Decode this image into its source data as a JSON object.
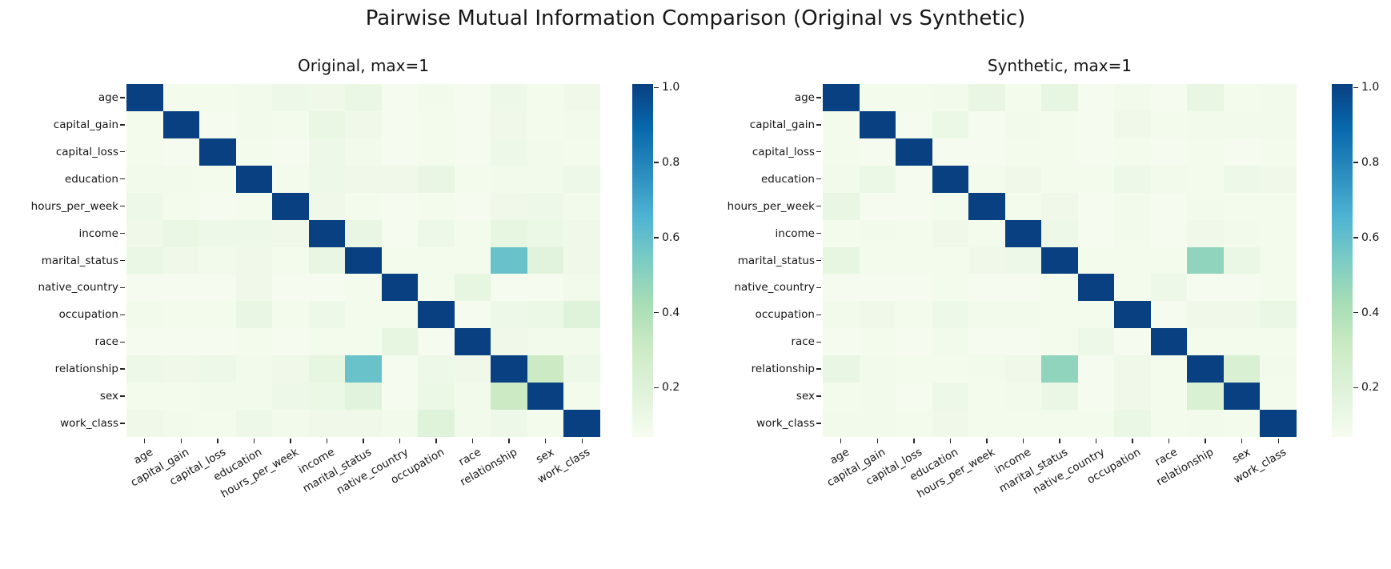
{
  "figure": {
    "title": "Pairwise Mutual Information Comparison (Original vs Synthetic)",
    "background": "#ffffff",
    "text_color": "#161616"
  },
  "chart_data": {
    "type": "heatmap",
    "labels": [
      "age",
      "capital_gain",
      "capital_loss",
      "education",
      "hours_per_week",
      "income",
      "marital_status",
      "native_country",
      "occupation",
      "race",
      "relationship",
      "sex",
      "work_class"
    ],
    "vmin": 0,
    "vmax": 1,
    "grid": false,
    "colormap": {
      "name": "GnBu",
      "stops": [
        [
          0,
          "#f7fcf0"
        ],
        [
          0.125,
          "#e0f3db"
        ],
        [
          0.25,
          "#ccebc5"
        ],
        [
          0.375,
          "#a8ddb5"
        ],
        [
          0.5,
          "#7bccc4"
        ],
        [
          0.625,
          "#4eb3d3"
        ],
        [
          0.75,
          "#2b8cbe"
        ],
        [
          0.875,
          "#0868ac"
        ],
        [
          1,
          "#084081"
        ]
      ]
    },
    "colorbar": {
      "ticks": [
        "1.0",
        "0.8",
        "0.6",
        "0.4",
        "0.2"
      ],
      "tick_values": [
        1.0,
        0.8,
        0.6,
        0.4,
        0.2
      ]
    },
    "panels": [
      {
        "title": "Original, max=1",
        "matrix": [
          [
            1.0,
            0.02,
            0.02,
            0.03,
            0.05,
            0.04,
            0.07,
            0.01,
            0.03,
            0.01,
            0.05,
            0.02,
            0.04
          ],
          [
            0.02,
            1.0,
            0.01,
            0.03,
            0.02,
            0.07,
            0.04,
            0.01,
            0.02,
            0.01,
            0.04,
            0.02,
            0.03
          ],
          [
            0.02,
            0.01,
            1.0,
            0.02,
            0.01,
            0.05,
            0.03,
            0.01,
            0.02,
            0.01,
            0.05,
            0.03,
            0.02
          ],
          [
            0.03,
            0.03,
            0.02,
            1.0,
            0.02,
            0.05,
            0.04,
            0.04,
            0.08,
            0.02,
            0.03,
            0.03,
            0.05
          ],
          [
            0.05,
            0.02,
            0.01,
            0.02,
            1.0,
            0.04,
            0.02,
            0.01,
            0.02,
            0.01,
            0.04,
            0.05,
            0.03
          ],
          [
            0.04,
            0.07,
            0.05,
            0.05,
            0.04,
            1.0,
            0.08,
            0.01,
            0.05,
            0.02,
            0.09,
            0.06,
            0.04
          ],
          [
            0.07,
            0.04,
            0.03,
            0.04,
            0.02,
            0.08,
            1.0,
            0.02,
            0.02,
            0.02,
            0.55,
            0.12,
            0.04
          ],
          [
            0.01,
            0.01,
            0.01,
            0.04,
            0.01,
            0.01,
            0.02,
            1.0,
            0.02,
            0.09,
            0.01,
            0.01,
            0.03
          ],
          [
            0.03,
            0.02,
            0.02,
            0.08,
            0.02,
            0.05,
            0.02,
            0.02,
            1.0,
            0.01,
            0.05,
            0.06,
            0.13
          ],
          [
            0.01,
            0.01,
            0.01,
            0.02,
            0.01,
            0.02,
            0.02,
            0.09,
            0.01,
            1.0,
            0.04,
            0.03,
            0.03
          ],
          [
            0.05,
            0.04,
            0.05,
            0.03,
            0.04,
            0.09,
            0.55,
            0.01,
            0.05,
            0.04,
            1.0,
            0.25,
            0.05
          ],
          [
            0.02,
            0.02,
            0.03,
            0.03,
            0.05,
            0.06,
            0.12,
            0.01,
            0.06,
            0.03,
            0.25,
            1.0,
            0.02
          ],
          [
            0.04,
            0.03,
            0.02,
            0.05,
            0.03,
            0.04,
            0.04,
            0.03,
            0.13,
            0.03,
            0.05,
            0.02,
            1.0
          ]
        ]
      },
      {
        "title": "Synthetic, max=1",
        "matrix": [
          [
            1.0,
            0.02,
            0.02,
            0.03,
            0.08,
            0.02,
            0.09,
            0.01,
            0.03,
            0.01,
            0.08,
            0.02,
            0.03
          ],
          [
            0.02,
            1.0,
            0.01,
            0.06,
            0.01,
            0.03,
            0.02,
            0.01,
            0.04,
            0.02,
            0.03,
            0.03,
            0.03
          ],
          [
            0.02,
            0.01,
            1.0,
            0.01,
            0.01,
            0.02,
            0.02,
            0.01,
            0.02,
            0.01,
            0.02,
            0.01,
            0.02
          ],
          [
            0.03,
            0.06,
            0.01,
            1.0,
            0.02,
            0.04,
            0.02,
            0.02,
            0.05,
            0.03,
            0.02,
            0.05,
            0.04
          ],
          [
            0.08,
            0.01,
            0.01,
            0.02,
            1.0,
            0.02,
            0.04,
            0.01,
            0.03,
            0.01,
            0.03,
            0.02,
            0.02
          ],
          [
            0.02,
            0.03,
            0.02,
            0.04,
            0.02,
            1.0,
            0.05,
            0.01,
            0.03,
            0.01,
            0.04,
            0.03,
            0.02
          ],
          [
            0.09,
            0.02,
            0.02,
            0.02,
            0.04,
            0.05,
            1.0,
            0.02,
            0.02,
            0.02,
            0.44,
            0.07,
            0.02
          ],
          [
            0.01,
            0.01,
            0.01,
            0.02,
            0.01,
            0.01,
            0.02,
            1.0,
            0.02,
            0.05,
            0.01,
            0.01,
            0.02
          ],
          [
            0.03,
            0.04,
            0.02,
            0.05,
            0.03,
            0.03,
            0.02,
            0.02,
            1.0,
            0.01,
            0.04,
            0.04,
            0.07
          ],
          [
            0.01,
            0.02,
            0.01,
            0.03,
            0.01,
            0.01,
            0.02,
            0.05,
            0.01,
            1.0,
            0.02,
            0.02,
            0.02
          ],
          [
            0.08,
            0.03,
            0.02,
            0.02,
            0.03,
            0.04,
            0.44,
            0.01,
            0.04,
            0.02,
            1.0,
            0.17,
            0.03
          ],
          [
            0.02,
            0.03,
            0.01,
            0.05,
            0.02,
            0.03,
            0.07,
            0.01,
            0.04,
            0.02,
            0.17,
            1.0,
            0.02
          ],
          [
            0.03,
            0.03,
            0.02,
            0.04,
            0.02,
            0.02,
            0.02,
            0.02,
            0.07,
            0.02,
            0.03,
            0.02,
            1.0
          ]
        ]
      }
    ]
  }
}
